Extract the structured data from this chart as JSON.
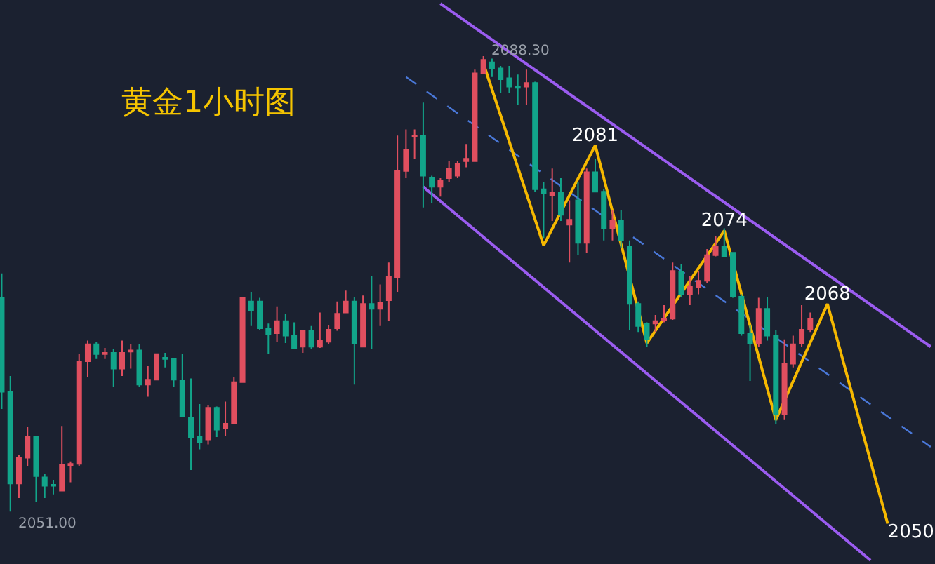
{
  "chart_data": {
    "type": "candlestick",
    "title": "黄金1小时图",
    "categories": [
      null,
      null,
      null,
      null,
      null,
      null,
      null,
      null,
      null,
      null,
      null,
      null,
      null,
      null,
      null,
      null,
      null,
      null,
      null,
      null,
      null,
      null,
      null,
      null,
      null,
      null,
      null,
      null,
      null,
      null,
      null,
      null,
      null,
      null,
      null,
      null,
      null,
      null,
      null,
      null,
      null,
      null,
      null,
      null,
      null,
      null,
      null,
      null,
      null,
      null,
      null,
      null,
      null,
      null,
      null,
      null,
      null,
      null,
      null,
      null,
      null,
      null,
      null,
      null,
      null,
      null,
      null,
      null,
      null,
      null,
      null,
      null,
      null,
      null,
      null,
      null,
      null,
      null,
      null,
      null,
      null,
      null,
      null,
      null,
      null,
      null,
      null,
      null,
      null,
      null,
      null,
      null,
      null,
      null,
      null,
      null,
      null,
      null,
      null,
      null,
      null,
      null,
      null,
      null,
      null,
      null,
      null,
      null,
      null
    ],
    "ohlc": [
      [
        2068.5,
        2070.5,
        2059.4,
        2060.8
      ],
      [
        2060.8,
        2062.1,
        2051.0,
        2053.3
      ],
      [
        2053.3,
        2055.6,
        2052.1,
        2055.4
      ],
      [
        2055.4,
        2057.9,
        2054.7,
        2057.1
      ],
      [
        2057.1,
        2057.2,
        2051.8,
        2053.9
      ],
      [
        2053.8,
        2054.1,
        2052.1,
        2053.1
      ],
      [
        2053.2,
        2053.6,
        2052.4,
        2053.1
      ],
      [
        2052.7,
        2058.0,
        2052.7,
        2054.8
      ],
      [
        2054.8,
        2055.1,
        2053.4,
        2054.9
      ],
      [
        2054.9,
        2063.9,
        2054.7,
        2063.3
      ],
      [
        2063.3,
        2065.0,
        2062.0,
        2064.7
      ],
      [
        2064.7,
        2064.9,
        2063.5,
        2063.9
      ],
      [
        2063.9,
        2064.4,
        2063.5,
        2064.0
      ],
      [
        2064.0,
        2064.3,
        2061.2,
        2062.7
      ],
      [
        2062.7,
        2065.0,
        2062.1,
        2064.0
      ],
      [
        2064.1,
        2064.7,
        2062.7,
        2064.2
      ],
      [
        2064.2,
        2064.7,
        2061.2,
        2061.4
      ],
      [
        2061.4,
        2062.9,
        2060.4,
        2061.8
      ],
      [
        2061.8,
        2063.9,
        2061.8,
        2063.9
      ],
      [
        2063.6,
        2064.0,
        2062.8,
        2063.5
      ],
      [
        2063.5,
        2063.5,
        2061.2,
        2061.8
      ],
      [
        2061.7,
        2063.9,
        2058.8,
        2058.8
      ],
      [
        2058.7,
        2061.9,
        2054.4,
        2057.1
      ],
      [
        2057.1,
        2059.8,
        2056.1,
        2056.7
      ],
      [
        2056.9,
        2059.7,
        2056.5,
        2059.5
      ],
      [
        2059.5,
        2059.6,
        2057.1,
        2057.7
      ],
      [
        2057.8,
        2060.0,
        2057.2,
        2058.2
      ],
      [
        2058.2,
        2062.0,
        2058.2,
        2061.6
      ],
      [
        2061.6,
        2068.6,
        2061.6,
        2068.5
      ],
      [
        2068.2,
        2069.0,
        2066.2,
        2067.5
      ],
      [
        2068.2,
        2068.5,
        2065.9,
        2066.0
      ],
      [
        2066.0,
        2066.4,
        2063.9,
        2065.5
      ],
      [
        2065.6,
        2067.8,
        2064.9,
        2066.6
      ],
      [
        2066.6,
        2067.2,
        2064.8,
        2065.4
      ],
      [
        2065.4,
        2066.5,
        2064.4,
        2064.4
      ],
      [
        2064.5,
        2065.8,
        2064.0,
        2065.8
      ],
      [
        2065.8,
        2066.2,
        2064.3,
        2064.5
      ],
      [
        2064.5,
        2067.3,
        2064.4,
        2065.0
      ],
      [
        2064.9,
        2066.3,
        2064.7,
        2065.9
      ],
      [
        2066.0,
        2068.2,
        2065.8,
        2067.2
      ],
      [
        2067.3,
        2069.1,
        2067.3,
        2068.2
      ],
      [
        2068.2,
        2068.6,
        2061.4,
        2064.8
      ],
      [
        2064.5,
        2068.7,
        2064.5,
        2068.0
      ],
      [
        2068.0,
        2070.3,
        2064.3,
        2067.6
      ],
      [
        2067.6,
        2069.6,
        2066.2,
        2068.1
      ],
      [
        2068.3,
        2071.4,
        2066.6,
        2070.2
      ],
      [
        2070.2,
        2081.8,
        2069.0,
        2078.9
      ],
      [
        2078.9,
        2082.3,
        2078.3,
        2080.6
      ],
      [
        2081.7,
        2082.3,
        2079.9,
        2081.8
      ],
      [
        2081.8,
        2084.5,
        2075.9,
        2078.5
      ],
      [
        2078.3,
        2078.5,
        2076.3,
        2077.6
      ],
      [
        2077.6,
        2078.3,
        2076.8,
        2078.1
      ],
      [
        2078.3,
        2079.7,
        2078.0,
        2079.1
      ],
      [
        2078.5,
        2079.7,
        2078.3,
        2079.5
      ],
      [
        2079.7,
        2081.1,
        2079.2,
        2079.9
      ],
      [
        2079.7,
        2087.2,
        2079.7,
        2086.9
      ],
      [
        2086.9,
        2088.3,
        2086.9,
        2088.0
      ],
      [
        2087.8,
        2088.1,
        2086.6,
        2087.3
      ],
      [
        2087.3,
        2087.5,
        2085.3,
        2086.4
      ],
      [
        2086.5,
        2087.5,
        2085.3,
        2085.8
      ],
      [
        2085.8,
        2086.8,
        2084.3,
        2085.7
      ],
      [
        2085.8,
        2087.2,
        2084.3,
        2086.1
      ],
      [
        2086.1,
        2086.2,
        2077.2,
        2077.4
      ],
      [
        2077.4,
        2078.0,
        2073.4,
        2077.1
      ],
      [
        2076.9,
        2079.1,
        2074.8,
        2077.1
      ],
      [
        2077.1,
        2078.3,
        2074.8,
        2075.3
      ],
      [
        2074.5,
        2076.5,
        2071.4,
        2074.9
      ],
      [
        2076.5,
        2078.0,
        2072.0,
        2073.0
      ],
      [
        2073.0,
        2079.1,
        2072.2,
        2078.8
      ],
      [
        2078.8,
        2079.9,
        2077.2,
        2077.2
      ],
      [
        2077.2,
        2077.4,
        2073.2,
        2074.2
      ],
      [
        2074.2,
        2075.7,
        2073.2,
        2074.8
      ],
      [
        2074.8,
        2075.7,
        2072.6,
        2073.2
      ],
      [
        2072.7,
        2073.2,
        2065.9,
        2068.0
      ],
      [
        2068.0,
        2068.2,
        2065.7,
        2066.2
      ],
      [
        2066.4,
        2066.5,
        2064.5,
        2065.1
      ],
      [
        2066.4,
        2067.1,
        2065.7,
        2066.6
      ],
      [
        2066.7,
        2067.9,
        2066.5,
        2066.8
      ],
      [
        2066.8,
        2071.4,
        2066.7,
        2070.7
      ],
      [
        2070.6,
        2071.3,
        2068.6,
        2068.8
      ],
      [
        2068.8,
        2070.3,
        2067.9,
        2069.4
      ],
      [
        2069.4,
        2070.7,
        2068.8,
        2069.9
      ],
      [
        2069.9,
        2072.5,
        2069.7,
        2072.0
      ],
      [
        2072.0,
        2073.6,
        2071.9,
        2072.7
      ],
      [
        2072.7,
        2074.2,
        2071.9,
        2071.9
      ],
      [
        2072.2,
        2072.2,
        2068.5,
        2068.6
      ],
      [
        2068.6,
        2068.8,
        2065.4,
        2065.6
      ],
      [
        2065.6,
        2066.3,
        2061.7,
        2064.8
      ],
      [
        2064.8,
        2068.5,
        2064.5,
        2067.6
      ],
      [
        2067.6,
        2068.6,
        2065.0,
        2065.4
      ],
      [
        2065.4,
        2065.9,
        2058.2,
        2059.0
      ],
      [
        2059.0,
        2065.1,
        2058.5,
        2063.1
      ],
      [
        2063.1,
        2065.4,
        2062.8,
        2064.7
      ],
      [
        2064.8,
        2067.9,
        2064.5,
        2065.9
      ],
      [
        2065.9,
        2067.3,
        2065.7,
        2066.8
      ],
      null,
      null,
      null,
      null,
      null,
      null,
      null,
      null,
      null,
      null,
      null,
      null,
      null,
      null
    ],
    "colors": [
      "#12a58a",
      "#12a58a",
      "#e04f5f",
      "#e04f5f",
      "#12a58a",
      "#12a58a",
      "#12a58a",
      "#e04f5f",
      "#e04f5f",
      "#e04f5f",
      "#e04f5f",
      "#12a58a",
      "#e04f5f",
      "#12a58a",
      "#e04f5f",
      "#e04f5f",
      "#12a58a",
      "#e04f5f",
      "#e04f5f",
      "#12a58a",
      "#12a58a",
      "#12a58a",
      "#12a58a",
      "#12a58a",
      "#e04f5f",
      "#12a58a",
      "#e04f5f",
      "#e04f5f",
      "#e04f5f",
      "#12a58a",
      "#12a58a",
      "#12a58a",
      "#e04f5f",
      "#12a58a",
      "#12a58a",
      "#e04f5f",
      "#12a58a",
      "#e04f5f",
      "#e04f5f",
      "#e04f5f",
      "#e04f5f",
      "#12a58a",
      "#e04f5f",
      "#12a58a",
      "#e04f5f",
      "#e04f5f",
      "#e04f5f",
      "#e04f5f",
      "#e04f5f",
      "#12a58a",
      "#12a58a",
      "#e04f5f",
      "#e04f5f",
      "#e04f5f",
      "#e04f5f",
      "#e04f5f",
      "#e04f5f",
      "#12a58a",
      "#12a58a",
      "#12a58a",
      "#12a58a",
      "#e04f5f",
      "#12a58a",
      "#12a58a",
      "#e04f5f",
      "#12a58a",
      "#e04f5f",
      "#12a58a",
      "#e04f5f",
      "#12a58a",
      "#12a58a",
      "#e04f5f",
      "#12a58a",
      "#12a58a",
      "#12a58a",
      "#12a58a",
      "#e04f5f",
      "#e04f5f",
      "#e04f5f",
      "#12a58a",
      "#e04f5f",
      "#e04f5f",
      "#e04f5f",
      "#e04f5f",
      "#12a58a",
      "#12a58a",
      "#12a58a",
      "#12a58a",
      "#e04f5f",
      "#12a58a",
      "#12a58a",
      "#e04f5f",
      "#e04f5f",
      "#e04f5f",
      "#e04f5f",
      null,
      null,
      null,
      null,
      null,
      null,
      null,
      null,
      null,
      null,
      null,
      null,
      null,
      null
    ],
    "series": [
      {
        "type": "line",
        "color": "#9b5cf0",
        "line_style": "solid",
        "values": [
          null,
          null,
          null,
          null,
          null,
          null,
          null,
          null,
          null,
          null,
          null,
          null,
          null,
          null,
          null,
          null,
          null,
          null,
          null,
          null,
          null,
          null,
          null,
          null,
          null,
          null,
          null,
          null,
          null,
          null,
          null,
          null,
          null,
          null,
          null,
          null,
          null,
          null,
          null,
          null,
          null,
          null,
          null,
          null,
          null,
          null,
          null,
          null,
          null,
          null,
          null,
          2092.6,
          null,
          null,
          null,
          null,
          null,
          null,
          null,
          null,
          null,
          null,
          null,
          null,
          null,
          null,
          null,
          null,
          null,
          null,
          null,
          null,
          null,
          null,
          null,
          null,
          null,
          null,
          null,
          null,
          null,
          null,
          null,
          null,
          null,
          null,
          null,
          null,
          null,
          null,
          null,
          null,
          null,
          null,
          null,
          null,
          null,
          null,
          null,
          null,
          null,
          null,
          null,
          null,
          null,
          null,
          null,
          null,
          2064.5
        ]
      },
      {
        "type": "line",
        "color": "#9b5cf0",
        "line_style": "solid",
        "values": [
          null,
          null,
          null,
          null,
          null,
          null,
          null,
          null,
          null,
          null,
          null,
          null,
          null,
          null,
          null,
          null,
          null,
          null,
          null,
          null,
          null,
          null,
          null,
          null,
          null,
          null,
          null,
          null,
          null,
          null,
          null,
          null,
          null,
          null,
          null,
          null,
          null,
          null,
          null,
          null,
          null,
          null,
          null,
          null,
          null,
          null,
          null,
          null,
          null,
          2077.6,
          null,
          null,
          null,
          null,
          null,
          null,
          null,
          null,
          null,
          null,
          null,
          null,
          null,
          null,
          null,
          null,
          null,
          null,
          null,
          null,
          null,
          null,
          null,
          null,
          null,
          null,
          null,
          null,
          null,
          null,
          null,
          null,
          null,
          null,
          null,
          null,
          null,
          null,
          null,
          null,
          null,
          null,
          null,
          null,
          null,
          null,
          null,
          null,
          null,
          null,
          null,
          2047.0,
          null,
          null,
          null,
          null,
          null,
          null,
          null
        ]
      },
      {
        "type": "line",
        "color": "#4a78d8",
        "line_style": "dashed",
        "values": [
          null,
          null,
          null,
          null,
          null,
          null,
          null,
          null,
          null,
          null,
          null,
          null,
          null,
          null,
          null,
          null,
          null,
          null,
          null,
          null,
          null,
          null,
          null,
          null,
          null,
          null,
          null,
          null,
          null,
          null,
          null,
          null,
          null,
          null,
          null,
          null,
          null,
          null,
          null,
          null,
          null,
          null,
          null,
          null,
          null,
          null,
          null,
          2086.6,
          null,
          null,
          null,
          null,
          null,
          null,
          null,
          null,
          null,
          null,
          null,
          null,
          null,
          null,
          null,
          null,
          null,
          null,
          null,
          null,
          null,
          null,
          null,
          null,
          null,
          null,
          null,
          null,
          null,
          null,
          null,
          null,
          null,
          null,
          null,
          null,
          null,
          null,
          null,
          null,
          null,
          null,
          null,
          null,
          null,
          null,
          null,
          null,
          null,
          null,
          null,
          null,
          null,
          null,
          null,
          null,
          null,
          null,
          null,
          null,
          2056.3
        ]
      },
      {
        "type": "line",
        "color": "#f5b800",
        "line_style": "solid",
        "values": [
          null,
          null,
          null,
          null,
          null,
          null,
          null,
          null,
          null,
          null,
          null,
          null,
          null,
          null,
          null,
          null,
          null,
          null,
          null,
          null,
          null,
          null,
          null,
          null,
          null,
          null,
          null,
          null,
          null,
          null,
          null,
          null,
          null,
          null,
          null,
          null,
          null,
          null,
          null,
          null,
          null,
          null,
          null,
          null,
          null,
          null,
          null,
          null,
          null,
          null,
          null,
          null,
          null,
          null,
          null,
          null,
          2087.7,
          null,
          null,
          null,
          null,
          null,
          null,
          2072.8,
          null,
          null,
          null,
          null,
          null,
          2081,
          null,
          null,
          null,
          null,
          null,
          2064.8,
          null,
          null,
          null,
          null,
          null,
          null,
          null,
          null,
          2074,
          null,
          null,
          null,
          null,
          null,
          2058.5,
          null,
          null,
          null,
          null,
          null,
          2068,
          null,
          null,
          null,
          null,
          null,
          null,
          2050,
          null,
          null,
          null,
          null,
          null
        ],
        "value_labels": [
          null,
          null,
          null,
          null,
          null,
          null,
          null,
          null,
          null,
          null,
          null,
          null,
          null,
          null,
          null,
          null,
          null,
          null,
          null,
          null,
          null,
          null,
          null,
          null,
          null,
          null,
          null,
          null,
          null,
          null,
          null,
          null,
          null,
          null,
          null,
          null,
          null,
          null,
          null,
          null,
          null,
          null,
          null,
          null,
          null,
          null,
          null,
          null,
          null,
          null,
          null,
          null,
          null,
          null,
          null,
          null,
          null,
          null,
          null,
          null,
          null,
          null,
          null,
          null,
          null,
          null,
          null,
          null,
          null,
          "2081",
          null,
          null,
          null,
          null,
          null,
          null,
          null,
          null,
          null,
          null,
          null,
          null,
          null,
          null,
          "2074",
          null,
          null,
          null,
          null,
          null,
          null,
          null,
          null,
          null,
          null,
          null,
          "2068",
          null,
          null,
          null,
          null,
          null,
          null,
          "2050",
          null,
          null,
          null,
          null,
          null
        ]
      }
    ],
    "annotations": [
      "2088.30",
      "2051.00"
    ],
    "ylim": [
      2046.7,
      2092.9
    ],
    "tick_labels": false,
    "grid": false
  }
}
